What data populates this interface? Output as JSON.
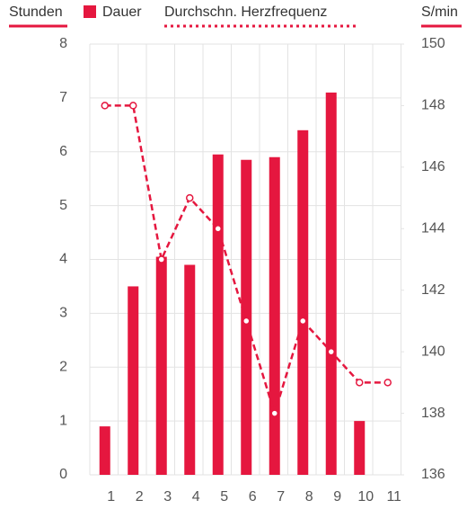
{
  "chart_data": {
    "type": "bar-line",
    "y_axis_title": "Stunden",
    "y2_axis_title": "S/min",
    "categories": [
      "1",
      "2",
      "3",
      "4",
      "5",
      "6",
      "7",
      "8",
      "9",
      "10",
      "11"
    ],
    "series": [
      {
        "name": "Dauer",
        "type": "bar",
        "color": "#e5173f",
        "values": [
          0.9,
          3.5,
          4.05,
          3.9,
          5.95,
          5.85,
          5.9,
          6.4,
          7.1,
          1.0,
          null
        ]
      },
      {
        "name": "Durchschn. Herzfrequenz",
        "type": "line",
        "axis": "y2",
        "color": "#e5173f",
        "values": [
          148,
          148,
          143,
          145,
          144,
          141,
          138,
          141,
          140,
          139,
          139
        ]
      }
    ],
    "ylim": [
      0,
      8
    ],
    "yticks": [
      0,
      1,
      2,
      3,
      4,
      5,
      6,
      7,
      8
    ],
    "y2lim": [
      136,
      150
    ],
    "y2ticks": [
      136,
      138,
      140,
      142,
      144,
      146,
      148,
      150
    ],
    "grid": true
  }
}
